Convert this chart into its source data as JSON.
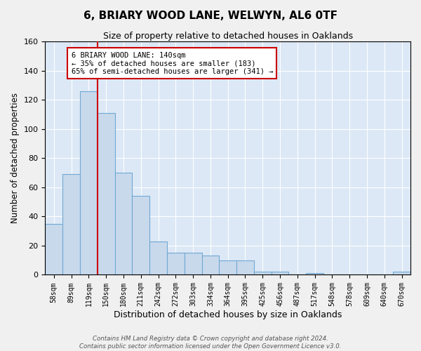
{
  "title1": "6, BRIARY WOOD LANE, WELWYN, AL6 0TF",
  "title2": "Size of property relative to detached houses in Oaklands",
  "xlabel": "Distribution of detached houses by size in Oaklands",
  "ylabel": "Number of detached properties",
  "bar_labels": [
    "58sqm",
    "89sqm",
    "119sqm",
    "150sqm",
    "180sqm",
    "211sqm",
    "242sqm",
    "272sqm",
    "303sqm",
    "334sqm",
    "364sqm",
    "395sqm",
    "425sqm",
    "456sqm",
    "487sqm",
    "517sqm",
    "548sqm",
    "578sqm",
    "609sqm",
    "640sqm",
    "670sqm"
  ],
  "bar_values": [
    35,
    69,
    126,
    111,
    70,
    54,
    23,
    15,
    15,
    13,
    10,
    10,
    2,
    2,
    0,
    1,
    0,
    0,
    0,
    0,
    2
  ],
  "bar_width": 1.0,
  "bar_color": "#c8d9ec",
  "bar_edge_color": "#6fa8d3",
  "background_color": "#dce8f5",
  "grid_color": "#ffffff",
  "red_line_x": 2.5,
  "annotation_text": "6 BRIARY WOOD LANE: 140sqm\n← 35% of detached houses are smaller (183)\n65% of semi-detached houses are larger (341) →",
  "annotation_box_color": "#ffffff",
  "annotation_box_edge": "#cc0000",
  "footer1": "Contains HM Land Registry data © Crown copyright and database right 2024.",
  "footer2": "Contains public sector information licensed under the Open Government Licence v3.0.",
  "ylim": [
    0,
    160
  ],
  "yticks": [
    0,
    20,
    40,
    60,
    80,
    100,
    120,
    140,
    160
  ],
  "fig_facecolor": "#f0f0f0"
}
